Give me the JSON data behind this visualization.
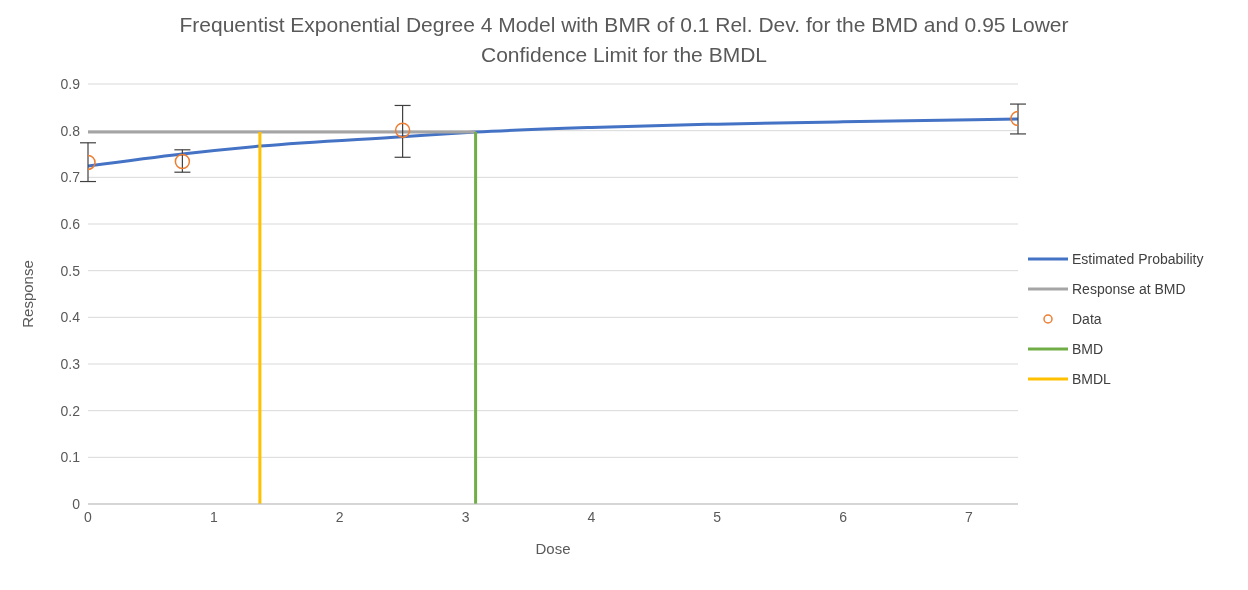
{
  "chart_data": {
    "type": "line",
    "title": "Frequentist Exponential Degree 4 Model with BMR of 0.1 Rel. Dev. for the BMD and 0.95 Lower Confidence Limit for the BMDL",
    "xlabel": "Dose",
    "ylabel": "Response",
    "xlim": [
      0,
      7.39
    ],
    "xticks": [
      0,
      1,
      2,
      3,
      4,
      5,
      6,
      7
    ],
    "ylim": [
      0,
      0.9
    ],
    "yticks": [
      0,
      0.1,
      0.2,
      0.3,
      0.4,
      0.5,
      0.6,
      0.7,
      0.8,
      0.9
    ],
    "grid": "y",
    "legend": "right",
    "series": [
      {
        "name": "Estimated Probability",
        "color": "#4472c4",
        "marker": "none",
        "x": [
          0,
          0.75,
          1.37,
          2.5,
          3.08,
          4,
          5,
          6,
          7.39
        ],
        "values": [
          0.724,
          0.75,
          0.767,
          0.787,
          0.797,
          0.807,
          0.814,
          0.819,
          0.825
        ]
      },
      {
        "name": "Response at BMD",
        "color": "#a5a5a5",
        "marker": "none",
        "x": [
          0,
          3.08
        ],
        "values": [
          0.797,
          0.797
        ]
      },
      {
        "name": "Data",
        "type": "scatter",
        "color": "#ed7d31",
        "marker": "circle",
        "x": [
          0,
          0.75,
          2.5,
          7.39
        ],
        "values": [
          0.732,
          0.734,
          0.801,
          0.826
        ],
        "errors": [
          [
            0.691,
            0.774
          ],
          [
            0.711,
            0.759
          ],
          [
            0.743,
            0.854
          ],
          [
            0.793,
            0.857
          ]
        ]
      },
      {
        "name": "BMD",
        "color": "#70ad47",
        "marker": "none",
        "x": [
          3.08,
          3.08
        ],
        "values": [
          0,
          0.797
        ]
      },
      {
        "name": "BMDL",
        "color": "#ffc000",
        "marker": "none",
        "x": [
          1.366,
          1.366
        ],
        "values": [
          0,
          0.797
        ]
      }
    ]
  }
}
